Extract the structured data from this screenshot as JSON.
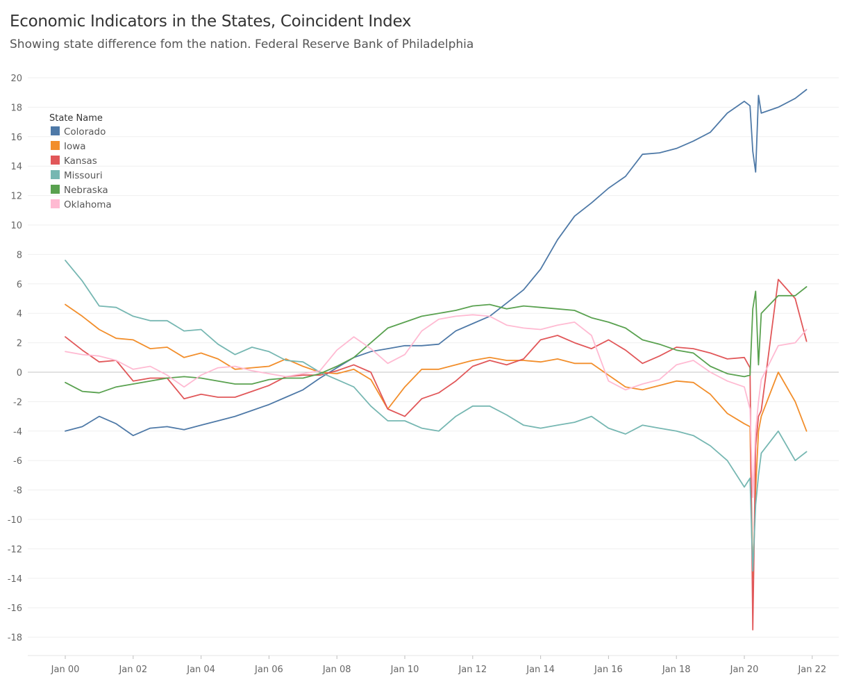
{
  "title": "Economic Indicators in the States, Coincident Index",
  "subtitle": "Showing state difference fom the nation. Federal Reserve Bank of Philadelphia",
  "chart_data": {
    "type": "line",
    "title": "Economic Indicators in the States, Coincident Index",
    "subtitle": "Showing state difference fom the nation. Federal Reserve Bank of Philadelphia",
    "xlabel": "",
    "ylabel": "",
    "xlim": [
      "2000-01",
      "2021-11"
    ],
    "ylim": [
      -19,
      20.5
    ],
    "yticks": [
      20,
      18,
      16,
      14,
      12,
      10,
      8,
      6,
      4,
      2,
      0,
      -2,
      -4,
      -6,
      -8,
      -10,
      -12,
      -14,
      -16,
      -18
    ],
    "yticklabels": [
      "20",
      "18",
      "16",
      "14",
      "12",
      "10",
      "8",
      "6",
      "4",
      "2",
      "0",
      "-2",
      "-4",
      "-6",
      "-8",
      "-10",
      "-12",
      "-14",
      "-16",
      "-18"
    ],
    "xticks": [
      "2000-01",
      "2002-01",
      "2004-01",
      "2006-01",
      "2008-01",
      "2010-01",
      "2012-01",
      "2014-01",
      "2016-01",
      "2018-01",
      "2020-01",
      "2022-01"
    ],
    "xticklabels": [
      "Jan 00",
      "Jan 02",
      "Jan 04",
      "Jan 06",
      "Jan 08",
      "Jan 10",
      "Jan 12",
      "Jan 14",
      "Jan 16",
      "Jan 18",
      "Jan 20",
      "Jan 22"
    ],
    "grid": true,
    "zero_line": true,
    "legend": {
      "title": "State Name",
      "position": "top-left"
    },
    "series": [
      {
        "name": "Colorado",
        "color": "#4e79a7",
        "x": [
          "2000-01",
          "2000-07",
          "2001-01",
          "2001-07",
          "2002-01",
          "2002-07",
          "2003-01",
          "2003-07",
          "2004-01",
          "2004-07",
          "2005-01",
          "2005-07",
          "2006-01",
          "2006-07",
          "2007-01",
          "2007-07",
          "2008-01",
          "2008-07",
          "2009-01",
          "2009-07",
          "2010-01",
          "2010-07",
          "2011-01",
          "2011-07",
          "2012-01",
          "2012-07",
          "2013-01",
          "2013-07",
          "2014-01",
          "2014-07",
          "2015-01",
          "2015-07",
          "2016-01",
          "2016-07",
          "2017-01",
          "2017-07",
          "2018-01",
          "2018-07",
          "2019-01",
          "2019-07",
          "2020-01",
          "2020-03",
          "2020-04",
          "2020-05",
          "2020-06",
          "2020-07",
          "2021-01",
          "2021-07",
          "2021-11"
        ],
        "y": [
          -4.0,
          -3.7,
          -3.0,
          -3.5,
          -4.3,
          -3.8,
          -3.7,
          -3.9,
          -3.6,
          -3.3,
          -3.0,
          -2.6,
          -2.2,
          -1.7,
          -1.2,
          -0.4,
          0.3,
          1.0,
          1.4,
          1.6,
          1.8,
          1.8,
          1.9,
          2.8,
          3.3,
          3.8,
          4.7,
          5.6,
          7.0,
          9.0,
          10.6,
          11.5,
          12.5,
          13.3,
          14.8,
          14.9,
          15.2,
          15.7,
          16.3,
          17.6,
          18.4,
          18.1,
          15.0,
          13.6,
          18.8,
          17.6,
          18.0,
          18.6,
          19.2
        ]
      },
      {
        "name": "Iowa",
        "color": "#f28e2b",
        "x": [
          "2000-01",
          "2000-07",
          "2001-01",
          "2001-07",
          "2002-01",
          "2002-07",
          "2003-01",
          "2003-07",
          "2004-01",
          "2004-07",
          "2005-01",
          "2005-07",
          "2006-01",
          "2006-07",
          "2007-01",
          "2007-07",
          "2008-01",
          "2008-07",
          "2009-01",
          "2009-07",
          "2010-01",
          "2010-07",
          "2011-01",
          "2011-07",
          "2012-01",
          "2012-07",
          "2013-01",
          "2013-07",
          "2014-01",
          "2014-07",
          "2015-01",
          "2015-07",
          "2016-01",
          "2016-07",
          "2017-01",
          "2017-07",
          "2018-01",
          "2018-07",
          "2019-01",
          "2019-07",
          "2020-01",
          "2020-03",
          "2020-04",
          "2020-05",
          "2020-06",
          "2020-07",
          "2021-01",
          "2021-07",
          "2021-11"
        ],
        "y": [
          4.6,
          3.8,
          2.9,
          2.3,
          2.2,
          1.6,
          1.7,
          1.0,
          1.3,
          0.9,
          0.2,
          0.3,
          0.4,
          0.9,
          0.4,
          0.0,
          -0.1,
          0.2,
          -0.5,
          -2.5,
          -1.0,
          0.2,
          0.2,
          0.5,
          0.8,
          1.0,
          0.8,
          0.8,
          0.7,
          0.9,
          0.6,
          0.6,
          -0.2,
          -1.0,
          -1.2,
          -0.9,
          -0.6,
          -0.7,
          -1.5,
          -2.8,
          -3.5,
          -3.7,
          -14.0,
          -8.0,
          -4.0,
          -3.0,
          0.0,
          -2.0,
          -4.0
        ]
      },
      {
        "name": "Kansas",
        "color": "#e15759",
        "x": [
          "2000-01",
          "2000-07",
          "2001-01",
          "2001-07",
          "2002-01",
          "2002-07",
          "2003-01",
          "2003-07",
          "2004-01",
          "2004-07",
          "2005-01",
          "2005-07",
          "2006-01",
          "2006-07",
          "2007-01",
          "2007-07",
          "2008-01",
          "2008-07",
          "2009-01",
          "2009-07",
          "2010-01",
          "2010-07",
          "2011-01",
          "2011-07",
          "2012-01",
          "2012-07",
          "2013-01",
          "2013-07",
          "2014-01",
          "2014-07",
          "2015-01",
          "2015-07",
          "2016-01",
          "2016-07",
          "2017-01",
          "2017-07",
          "2018-01",
          "2018-07",
          "2019-01",
          "2019-07",
          "2020-01",
          "2020-03",
          "2020-04",
          "2020-05",
          "2020-06",
          "2020-07",
          "2021-01",
          "2021-07",
          "2021-11"
        ],
        "y": [
          2.4,
          1.5,
          0.7,
          0.8,
          -0.6,
          -0.4,
          -0.4,
          -1.8,
          -1.5,
          -1.7,
          -1.7,
          -1.3,
          -0.9,
          -0.3,
          -0.2,
          -0.2,
          0.1,
          0.5,
          0.0,
          -2.5,
          -3.0,
          -1.8,
          -1.4,
          -0.6,
          0.4,
          0.8,
          0.5,
          0.9,
          2.2,
          2.5,
          2.0,
          1.6,
          2.2,
          1.5,
          0.6,
          1.1,
          1.7,
          1.6,
          1.3,
          0.9,
          1.0,
          0.3,
          -17.5,
          -5.0,
          -3.0,
          -2.6,
          6.3,
          5.0,
          2.1
        ]
      },
      {
        "name": "Missouri",
        "color": "#76b7b2",
        "x": [
          "2000-01",
          "2000-07",
          "2001-01",
          "2001-07",
          "2002-01",
          "2002-07",
          "2003-01",
          "2003-07",
          "2004-01",
          "2004-07",
          "2005-01",
          "2005-07",
          "2006-01",
          "2006-07",
          "2007-01",
          "2007-07",
          "2008-01",
          "2008-07",
          "2009-01",
          "2009-07",
          "2010-01",
          "2010-07",
          "2011-01",
          "2011-07",
          "2012-01",
          "2012-07",
          "2013-01",
          "2013-07",
          "2014-01",
          "2014-07",
          "2015-01",
          "2015-07",
          "2016-01",
          "2016-07",
          "2017-01",
          "2017-07",
          "2018-01",
          "2018-07",
          "2019-01",
          "2019-07",
          "2020-01",
          "2020-03",
          "2020-04",
          "2020-05",
          "2020-06",
          "2020-07",
          "2021-01",
          "2021-07",
          "2021-11"
        ],
        "y": [
          7.6,
          6.2,
          4.5,
          4.4,
          3.8,
          3.5,
          3.5,
          2.8,
          2.9,
          1.9,
          1.2,
          1.7,
          1.4,
          0.8,
          0.7,
          0.0,
          -0.5,
          -1.0,
          -2.3,
          -3.3,
          -3.3,
          -3.8,
          -4.0,
          -3.0,
          -2.3,
          -2.3,
          -2.9,
          -3.6,
          -3.8,
          -3.6,
          -3.4,
          -3.0,
          -3.8,
          -4.2,
          -3.6,
          -3.8,
          -4.0,
          -4.3,
          -5.0,
          -6.0,
          -7.8,
          -7.2,
          -13.5,
          -9.0,
          -7.0,
          -5.5,
          -4.0,
          -6.0,
          -5.4
        ]
      },
      {
        "name": "Nebraska",
        "color": "#59a14f",
        "x": [
          "2000-01",
          "2000-07",
          "2001-01",
          "2001-07",
          "2002-01",
          "2002-07",
          "2003-01",
          "2003-07",
          "2004-01",
          "2004-07",
          "2005-01",
          "2005-07",
          "2006-01",
          "2006-07",
          "2007-01",
          "2007-07",
          "2008-01",
          "2008-07",
          "2009-01",
          "2009-07",
          "2010-01",
          "2010-07",
          "2011-01",
          "2011-07",
          "2012-01",
          "2012-07",
          "2013-01",
          "2013-07",
          "2014-01",
          "2014-07",
          "2015-01",
          "2015-07",
          "2016-01",
          "2016-07",
          "2017-01",
          "2017-07",
          "2018-01",
          "2018-07",
          "2019-01",
          "2019-07",
          "2020-01",
          "2020-03",
          "2020-04",
          "2020-05",
          "2020-06",
          "2020-07",
          "2021-01",
          "2021-07",
          "2021-11"
        ],
        "y": [
          -0.7,
          -1.3,
          -1.4,
          -1.0,
          -0.8,
          -0.6,
          -0.4,
          -0.3,
          -0.4,
          -0.6,
          -0.8,
          -0.8,
          -0.5,
          -0.4,
          -0.4,
          -0.1,
          0.4,
          1.0,
          2.0,
          3.0,
          3.4,
          3.8,
          4.0,
          4.2,
          4.5,
          4.6,
          4.3,
          4.5,
          4.4,
          4.3,
          4.2,
          3.7,
          3.4,
          3.0,
          2.2,
          1.9,
          1.5,
          1.3,
          0.4,
          -0.1,
          -0.3,
          -0.2,
          4.3,
          5.5,
          0.5,
          4.0,
          5.2,
          5.2,
          5.8
        ]
      },
      {
        "name": "Oklahoma",
        "color": "#ffbad2",
        "x": [
          "2000-01",
          "2000-07",
          "2001-01",
          "2001-07",
          "2002-01",
          "2002-07",
          "2003-01",
          "2003-07",
          "2004-01",
          "2004-07",
          "2005-01",
          "2005-07",
          "2006-01",
          "2006-07",
          "2007-01",
          "2007-07",
          "2008-01",
          "2008-07",
          "2009-01",
          "2009-07",
          "2010-01",
          "2010-07",
          "2011-01",
          "2011-07",
          "2012-01",
          "2012-07",
          "2013-01",
          "2013-07",
          "2014-01",
          "2014-07",
          "2015-01",
          "2015-07",
          "2016-01",
          "2016-07",
          "2017-01",
          "2017-07",
          "2018-01",
          "2018-07",
          "2019-01",
          "2019-07",
          "2020-01",
          "2020-03",
          "2020-04",
          "2020-05",
          "2020-06",
          "2020-07",
          "2021-01",
          "2021-07",
          "2021-11"
        ],
        "y": [
          1.4,
          1.2,
          1.1,
          0.8,
          0.2,
          0.4,
          -0.2,
          -1.0,
          -0.2,
          0.3,
          0.4,
          0.1,
          -0.1,
          -0.3,
          -0.1,
          0.1,
          1.5,
          2.4,
          1.6,
          0.6,
          1.2,
          2.8,
          3.6,
          3.8,
          3.9,
          3.8,
          3.2,
          3.0,
          2.9,
          3.2,
          3.4,
          2.5,
          -0.6,
          -1.2,
          -0.8,
          -0.5,
          0.5,
          0.8,
          0.0,
          -0.6,
          -1.0,
          -2.5,
          -8.5,
          -4.0,
          -2.0,
          -0.5,
          1.8,
          2.0,
          2.9
        ]
      }
    ]
  },
  "legend": {
    "title": "State Name",
    "items": [
      {
        "label": "Colorado",
        "color": "#4e79a7"
      },
      {
        "label": "Iowa",
        "color": "#f28e2b"
      },
      {
        "label": "Kansas",
        "color": "#e15759"
      },
      {
        "label": "Missouri",
        "color": "#76b7b2"
      },
      {
        "label": "Nebraska",
        "color": "#59a14f"
      },
      {
        "label": "Oklahoma",
        "color": "#ffbad2"
      }
    ]
  }
}
